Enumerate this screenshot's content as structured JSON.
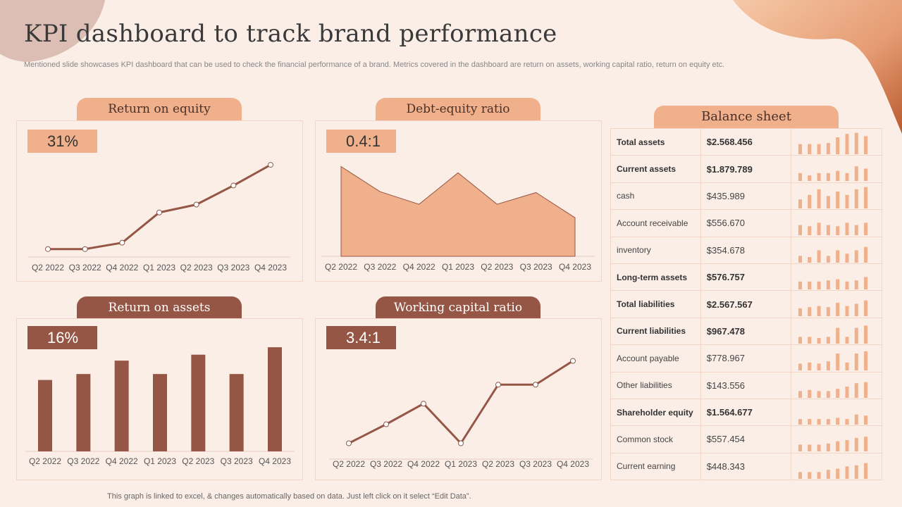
{
  "title": "KPI dashboard to track brand performance",
  "subtitle": "Mentioned slide showcases KPI dashboard that can be used to check the financial performance of a brand. Metrics covered in the dashboard are return on assets, working capital ratio, return on equity etc.",
  "footer": "This graph is linked to excel, & changes automatically based on data. Just left click on it select “Edit Data”.",
  "colors": {
    "light": "#f0b08b",
    "dark": "#955645",
    "background": "#fbeee7"
  },
  "chart_data": [
    {
      "id": "roe",
      "type": "line",
      "title": "Return on equity",
      "kpi": "31%",
      "categories": [
        "Q2 2022",
        "Q3 2022",
        "Q4 2022",
        "Q1 2023",
        "Q2 2023",
        "Q3 2023",
        "Q4 2023"
      ],
      "values": [
        5,
        5,
        9,
        28,
        33,
        45,
        58
      ],
      "ylim": [
        0,
        70
      ],
      "xlabel": "",
      "ylabel": ""
    },
    {
      "id": "der",
      "type": "area",
      "title": "Debt-equity ratio",
      "kpi": "0.4:1",
      "categories": [
        "Q2 2022",
        "Q3 2022",
        "Q4 2022",
        "Q1 2023",
        "Q2 2023",
        "Q3 2023",
        "Q4 2023"
      ],
      "values": [
        100,
        72,
        58,
        93,
        58,
        71,
        43
      ],
      "ylim": [
        0,
        120
      ],
      "xlabel": "",
      "ylabel": ""
    },
    {
      "id": "roa",
      "type": "bar",
      "title": "Return on assets",
      "kpi": "16%",
      "categories": [
        "Q2 2022",
        "Q3 2022",
        "Q4 2022",
        "Q1 2023",
        "Q2 2023",
        "Q3 2023",
        "Q4 2023"
      ],
      "values": [
        48,
        52,
        61,
        52,
        65,
        52,
        70
      ],
      "ylim": [
        0,
        80
      ],
      "xlabel": "",
      "ylabel": ""
    },
    {
      "id": "wcr",
      "type": "line",
      "title": "Working capital ratio",
      "kpi": "3.4:1",
      "categories": [
        "Q2 2022",
        "Q3 2022",
        "Q4 2022",
        "Q1 2023",
        "Q2 2023",
        "Q3 2023",
        "Q4 2023"
      ],
      "values": [
        10,
        22,
        35,
        10,
        47,
        47,
        62
      ],
      "ylim": [
        0,
        80
      ],
      "xlabel": "",
      "ylabel": ""
    }
  ],
  "balance_sheet": {
    "title": "Balance sheet",
    "rows": [
      {
        "label": "Total assets",
        "value": "$2.568.456",
        "bold": true,
        "bars": [
          0.45,
          0.45,
          0.45,
          0.5,
          0.75,
          0.9,
          0.95,
          0.8
        ]
      },
      {
        "label": "Current assets",
        "value": "$1.879.789",
        "bold": true,
        "bars": [
          0.35,
          0.25,
          0.35,
          0.35,
          0.45,
          0.35,
          0.65,
          0.55
        ]
      },
      {
        "label": "cash",
        "value": "$435.989",
        "bold": false,
        "bars": [
          0.4,
          0.6,
          0.85,
          0.55,
          0.75,
          0.6,
          0.85,
          0.95
        ]
      },
      {
        "label": "Account receivable",
        "value": "$556.670",
        "bold": false,
        "bars": [
          0.45,
          0.4,
          0.55,
          0.45,
          0.4,
          0.55,
          0.45,
          0.55
        ]
      },
      {
        "label": "inventory",
        "value": "$354.678",
        "bold": false,
        "bars": [
          0.3,
          0.25,
          0.55,
          0.3,
          0.55,
          0.4,
          0.55,
          0.7
        ]
      },
      {
        "label": "Long-term assets",
        "value": "$576.757",
        "bold": true,
        "bars": [
          0.35,
          0.35,
          0.35,
          0.4,
          0.45,
          0.35,
          0.4,
          0.55
        ]
      },
      {
        "label": "Total liabilities",
        "value": "$2.567.567",
        "bold": true,
        "bars": [
          0.35,
          0.4,
          0.45,
          0.4,
          0.6,
          0.45,
          0.55,
          0.7
        ]
      },
      {
        "label": "Current liabilities",
        "value": "$967.478",
        "bold": true,
        "bars": [
          0.3,
          0.3,
          0.25,
          0.3,
          0.7,
          0.3,
          0.7,
          0.8
        ]
      },
      {
        "label": "Account payable",
        "value": "$778.967",
        "bold": false,
        "bars": [
          0.3,
          0.35,
          0.3,
          0.4,
          0.75,
          0.35,
          0.75,
          0.85
        ]
      },
      {
        "label": "Other liabilities",
        "value": "$143.556",
        "bold": false,
        "bars": [
          0.3,
          0.35,
          0.3,
          0.3,
          0.4,
          0.5,
          0.65,
          0.7
        ]
      },
      {
        "label": "Shareholder equity",
        "value": "$1.564.677",
        "bold": true,
        "bars": [
          0.25,
          0.25,
          0.25,
          0.25,
          0.3,
          0.25,
          0.45,
          0.4
        ]
      },
      {
        "label": "Common stock",
        "value": "$557.454",
        "bold": false,
        "bars": [
          0.3,
          0.3,
          0.3,
          0.35,
          0.45,
          0.5,
          0.6,
          0.65
        ]
      },
      {
        "label": "Current earning",
        "value": "$448.343",
        "bold": false,
        "bars": [
          0.3,
          0.3,
          0.3,
          0.4,
          0.45,
          0.55,
          0.6,
          0.7
        ]
      }
    ]
  }
}
